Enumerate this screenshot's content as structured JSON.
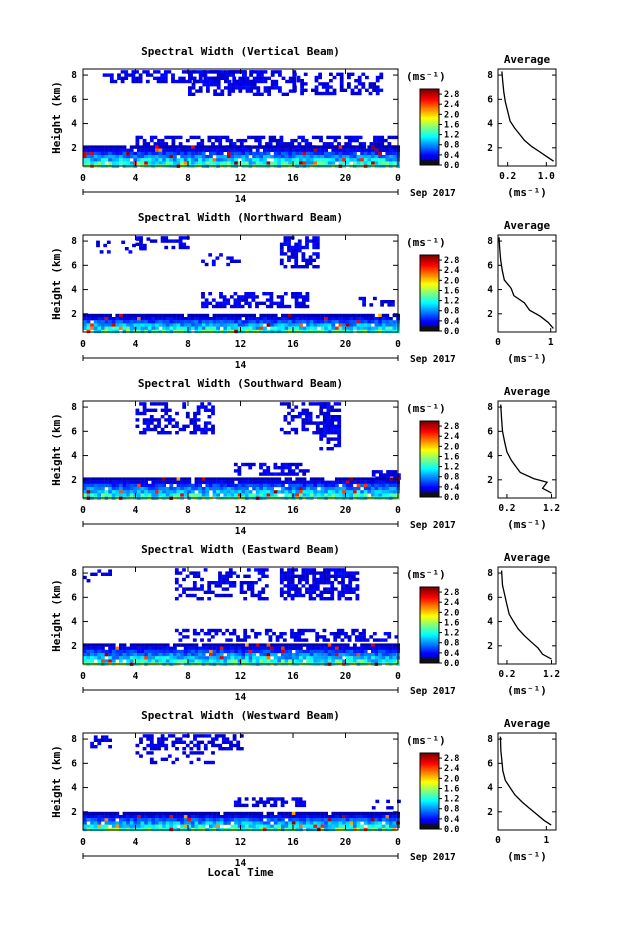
{
  "figure": {
    "date_label": "Sep 2017",
    "day_label": "14",
    "xlabel": "Local Time",
    "avg_title": "Average",
    "cb_unit": "(ms⁻¹)"
  },
  "chart_data": [
    {
      "type": "heatmap",
      "title": "Spectral Width (Vertical Beam)",
      "ylabel": "Height (km)",
      "xlabel": "Local Time",
      "x_ticks": [
        "0",
        "4",
        "8",
        "12",
        "16",
        "20",
        "0"
      ],
      "y_ticks": [
        "2",
        "4",
        "6",
        "8"
      ],
      "colorbar": {
        "label": "(ms⁻¹)",
        "ticks": [
          "0.0",
          "0.4",
          "0.8",
          "1.2",
          "1.6",
          "2.0",
          "2.4",
          "2.8"
        ],
        "range": [
          0,
          3.0
        ]
      },
      "average": {
        "title": "Average",
        "xlabel": "(ms⁻¹)",
        "x_ticks": [
          "0.2",
          "1.0"
        ],
        "xlim": [
          0,
          1.2
        ],
        "y_ticks": [
          "2",
          "4",
          "6",
          "8"
        ],
        "ylim": [
          0.5,
          8.5
        ],
        "profile": [
          [
            1.15,
            0.9
          ],
          [
            1.0,
            1.3
          ],
          [
            0.85,
            1.7
          ],
          [
            0.7,
            2.1
          ],
          [
            0.55,
            2.6
          ],
          [
            0.45,
            3.1
          ],
          [
            0.35,
            3.6
          ],
          [
            0.25,
            4.2
          ],
          [
            0.2,
            5.0
          ],
          [
            0.15,
            5.8
          ],
          [
            0.12,
            6.6
          ],
          [
            0.1,
            7.4
          ],
          [
            0.08,
            8.3
          ]
        ]
      }
    },
    {
      "type": "heatmap",
      "title": "Spectral Width (Northward Beam)",
      "ylabel": "Height (km)",
      "xlabel": "Local Time",
      "x_ticks": [
        "0",
        "4",
        "8",
        "12",
        "16",
        "20",
        "0"
      ],
      "y_ticks": [
        "2",
        "4",
        "6",
        "8"
      ],
      "colorbar": {
        "label": "(ms⁻¹)",
        "ticks": [
          "0.0",
          "0.4",
          "0.8",
          "1.2",
          "1.6",
          "2.0",
          "2.4",
          "2.8"
        ],
        "range": [
          0,
          3.0
        ]
      },
      "average": {
        "title": "Average",
        "xlabel": "(ms⁻¹)",
        "x_ticks": [
          "0",
          "1"
        ],
        "xlim": [
          0,
          1.1
        ],
        "y_ticks": [
          "2",
          "4",
          "6",
          "8"
        ],
        "ylim": [
          0.5,
          8.5
        ],
        "profile": [
          [
            1.05,
            0.8
          ],
          [
            0.95,
            1.3
          ],
          [
            0.8,
            1.8
          ],
          [
            0.6,
            2.3
          ],
          [
            0.5,
            2.9
          ],
          [
            0.3,
            3.5
          ],
          [
            0.25,
            4.1
          ],
          [
            0.12,
            4.8
          ],
          [
            0.08,
            5.6
          ],
          [
            0.05,
            6.5
          ],
          [
            0.03,
            7.5
          ],
          [
            0.02,
            8.3
          ]
        ]
      }
    },
    {
      "type": "heatmap",
      "title": "Spectral Width (Southward Beam)",
      "ylabel": "Height (km)",
      "xlabel": "Local Time",
      "x_ticks": [
        "0",
        "4",
        "8",
        "12",
        "16",
        "20",
        "0"
      ],
      "y_ticks": [
        "2",
        "4",
        "6",
        "8"
      ],
      "colorbar": {
        "label": "(ms⁻¹)",
        "ticks": [
          "0.0",
          "0.4",
          "0.8",
          "1.2",
          "1.6",
          "2.0",
          "2.4",
          "2.8"
        ],
        "range": [
          0,
          3.0
        ]
      },
      "average": {
        "title": "Average",
        "xlabel": "(ms⁻¹)",
        "x_ticks": [
          "0.2",
          "1.2"
        ],
        "xlim": [
          0,
          1.3
        ],
        "y_ticks": [
          "2",
          "4",
          "6",
          "8"
        ],
        "ylim": [
          0.5,
          8.5
        ],
        "profile": [
          [
            1.2,
            0.9
          ],
          [
            1.0,
            1.3
          ],
          [
            1.1,
            1.8
          ],
          [
            0.8,
            2.1
          ],
          [
            0.5,
            2.6
          ],
          [
            0.4,
            3.1
          ],
          [
            0.3,
            3.6
          ],
          [
            0.2,
            4.3
          ],
          [
            0.15,
            5.1
          ],
          [
            0.1,
            6.0
          ],
          [
            0.08,
            7.0
          ],
          [
            0.06,
            8.2
          ]
        ]
      }
    },
    {
      "type": "heatmap",
      "title": "Spectral Width (Eastward Beam)",
      "ylabel": "Height (km)",
      "xlabel": "Local Time",
      "x_ticks": [
        "0",
        "4",
        "8",
        "12",
        "16",
        "20",
        "0"
      ],
      "y_ticks": [
        "2",
        "4",
        "6",
        "8"
      ],
      "colorbar": {
        "label": "(ms⁻¹)",
        "ticks": [
          "0.0",
          "0.4",
          "0.8",
          "1.2",
          "1.6",
          "2.0",
          "2.4",
          "2.8"
        ],
        "range": [
          0,
          3.0
        ]
      },
      "average": {
        "title": "Average",
        "xlabel": "(ms⁻¹)",
        "x_ticks": [
          "0.2",
          "1.2"
        ],
        "xlim": [
          0,
          1.3
        ],
        "y_ticks": [
          "2",
          "4",
          "6",
          "8"
        ],
        "ylim": [
          0.5,
          8.5
        ],
        "profile": [
          [
            1.2,
            0.9
          ],
          [
            1.0,
            1.3
          ],
          [
            0.9,
            1.8
          ],
          [
            0.75,
            2.3
          ],
          [
            0.6,
            2.8
          ],
          [
            0.45,
            3.4
          ],
          [
            0.35,
            4.0
          ],
          [
            0.25,
            4.6
          ],
          [
            0.2,
            5.4
          ],
          [
            0.15,
            6.2
          ],
          [
            0.1,
            7.0
          ],
          [
            0.08,
            8.2
          ]
        ]
      }
    },
    {
      "type": "heatmap",
      "title": "Spectral Width (Westward Beam)",
      "ylabel": "Height (km)",
      "xlabel": "Local Time",
      "x_ticks": [
        "0",
        "4",
        "8",
        "12",
        "16",
        "20",
        "0"
      ],
      "y_ticks": [
        "2",
        "4",
        "6",
        "8"
      ],
      "colorbar": {
        "label": "(ms⁻¹)",
        "ticks": [
          "0.0",
          "0.4",
          "0.8",
          "1.2",
          "1.6",
          "2.0",
          "2.4",
          "2.8"
        ],
        "range": [
          0,
          3.0
        ]
      },
      "average": {
        "title": "Average",
        "xlabel": "(ms⁻¹)",
        "x_ticks": [
          "0",
          "1"
        ],
        "xlim": [
          0,
          1.2
        ],
        "y_ticks": [
          "2",
          "4",
          "6",
          "8"
        ],
        "ylim": [
          0.5,
          8.5
        ],
        "profile": [
          [
            1.1,
            0.9
          ],
          [
            0.95,
            1.3
          ],
          [
            0.8,
            1.8
          ],
          [
            0.65,
            2.3
          ],
          [
            0.5,
            2.8
          ],
          [
            0.35,
            3.4
          ],
          [
            0.25,
            4.0
          ],
          [
            0.15,
            4.6
          ],
          [
            0.1,
            5.4
          ],
          [
            0.08,
            6.2
          ],
          [
            0.06,
            7.0
          ],
          [
            0.05,
            8.2
          ]
        ]
      }
    }
  ]
}
